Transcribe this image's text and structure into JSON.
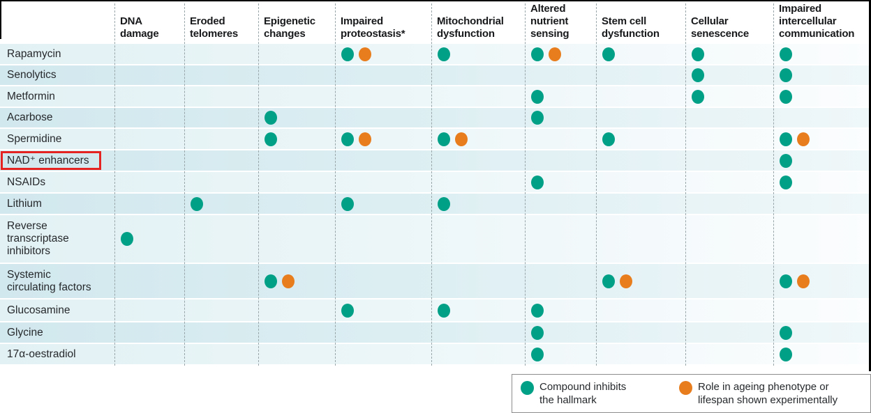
{
  "figure": {
    "colors": {
      "inhibits": "#00A087",
      "experimental": "#E87D1E",
      "highlight_box": "#E52421",
      "band_light": "#E2F1F4",
      "band_dark": "#D1E8EE"
    }
  },
  "chart_data": {
    "type": "table",
    "title": "Compounds versus hallmarks of ageing dot matrix",
    "columns": [
      "DNA\ndamage",
      "Eroded\ntelomeres",
      "Epigenetic\nchanges",
      "Impaired\nproteostasis*",
      "Mitochondrial\ndysfunction",
      "Altered\nnutrient\nsensing",
      "Stem cell\ndysfunction",
      "Cellular\nsenescence",
      "Impaired\nintercellular\ncommunication"
    ],
    "mark_codes": {
      "T": "compound inhibits the hallmark",
      "TO": "inhibits + role shown experimentally"
    },
    "rows": [
      {
        "label": "Rapamycin",
        "highlight": false,
        "marks": [
          "",
          "",
          "",
          "TO",
          "T",
          "TO",
          "T",
          "T",
          "T"
        ]
      },
      {
        "label": "Senolytics",
        "highlight": false,
        "marks": [
          "",
          "",
          "",
          "",
          "",
          "",
          "",
          "T",
          "T"
        ]
      },
      {
        "label": "Metformin",
        "highlight": false,
        "marks": [
          "",
          "",
          "",
          "",
          "",
          "T",
          "",
          "T",
          "T"
        ]
      },
      {
        "label": "Acarbose",
        "highlight": false,
        "marks": [
          "",
          "",
          "T",
          "",
          "",
          "T",
          "",
          "",
          ""
        ]
      },
      {
        "label": "Spermidine",
        "highlight": false,
        "marks": [
          "",
          "",
          "T",
          "TO",
          "TO",
          "",
          "T",
          "",
          "TO"
        ]
      },
      {
        "label": "NAD⁺ enhancers",
        "highlight": true,
        "marks": [
          "",
          "",
          "",
          "",
          "",
          "",
          "",
          "",
          "T"
        ]
      },
      {
        "label": "NSAIDs",
        "highlight": false,
        "marks": [
          "",
          "",
          "",
          "",
          "",
          "T",
          "",
          "",
          "T"
        ]
      },
      {
        "label": "Lithium",
        "highlight": false,
        "marks": [
          "",
          "T",
          "",
          "T",
          "T",
          "",
          "",
          "",
          ""
        ]
      },
      {
        "label": "Reverse\ntranscriptase\ninhibitors",
        "highlight": false,
        "marks": [
          "T",
          "",
          "",
          "",
          "",
          "",
          "",
          "",
          ""
        ]
      },
      {
        "label": "Systemic\ncirculating factors",
        "highlight": false,
        "marks": [
          "",
          "",
          "TO",
          "",
          "",
          "",
          "TO",
          "",
          "TO"
        ]
      },
      {
        "label": "Glucosamine",
        "highlight": false,
        "marks": [
          "",
          "",
          "",
          "T",
          "T",
          "T",
          "",
          "",
          ""
        ]
      },
      {
        "label": "Glycine",
        "highlight": false,
        "marks": [
          "",
          "",
          "",
          "",
          "",
          "T",
          "",
          "",
          "T"
        ]
      },
      {
        "label": "17α-oestradiol",
        "highlight": false,
        "marks": [
          "",
          "",
          "",
          "",
          "",
          "T",
          "",
          "",
          "T"
        ]
      }
    ],
    "legend": [
      {
        "color": "#00A087",
        "label": "Compound inhibits the hallmark"
      },
      {
        "color": "#E87D1E",
        "label": "Role in ageing phenotype or lifespan shown experimentally"
      }
    ],
    "legend_position": "bottom-right",
    "grid": "dashed-vertical-separators"
  }
}
